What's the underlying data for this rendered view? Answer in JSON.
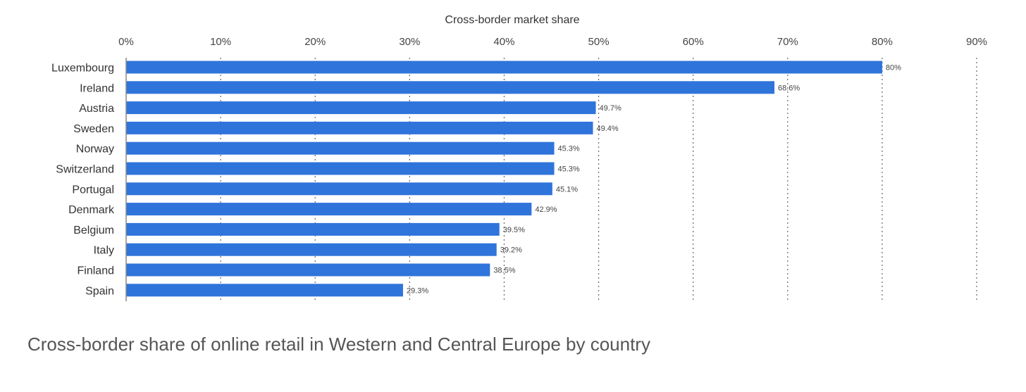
{
  "chart_data": {
    "type": "bar",
    "orientation": "horizontal",
    "xlabel": "Cross-border market share",
    "xlim": [
      0,
      90
    ],
    "x_ticks": [
      0,
      10,
      20,
      30,
      40,
      50,
      60,
      70,
      80,
      90
    ],
    "x_tick_labels": [
      "0%",
      "10%",
      "20%",
      "30%",
      "40%",
      "50%",
      "60%",
      "70%",
      "80%",
      "90%"
    ],
    "categories": [
      "Luxembourg",
      "Ireland",
      "Austria",
      "Sweden",
      "Norway",
      "Switzerland",
      "Portugal",
      "Denmark",
      "Belgium",
      "Italy",
      "Finland",
      "Spain"
    ],
    "values": [
      80,
      68.6,
      49.7,
      49.4,
      45.3,
      45.3,
      45.1,
      42.9,
      39.5,
      39.2,
      38.5,
      29.3
    ],
    "value_labels": [
      "80%",
      "68.6%",
      "49.7%",
      "49.4%",
      "45.3%",
      "45.3%",
      "45.1%",
      "42.9%",
      "39.5%",
      "39.2%",
      "38.5%",
      "29.3%"
    ],
    "grid": true,
    "bar_color": "#2f74db"
  },
  "caption": "Cross-border share of online retail in Western and Central Europe by country"
}
